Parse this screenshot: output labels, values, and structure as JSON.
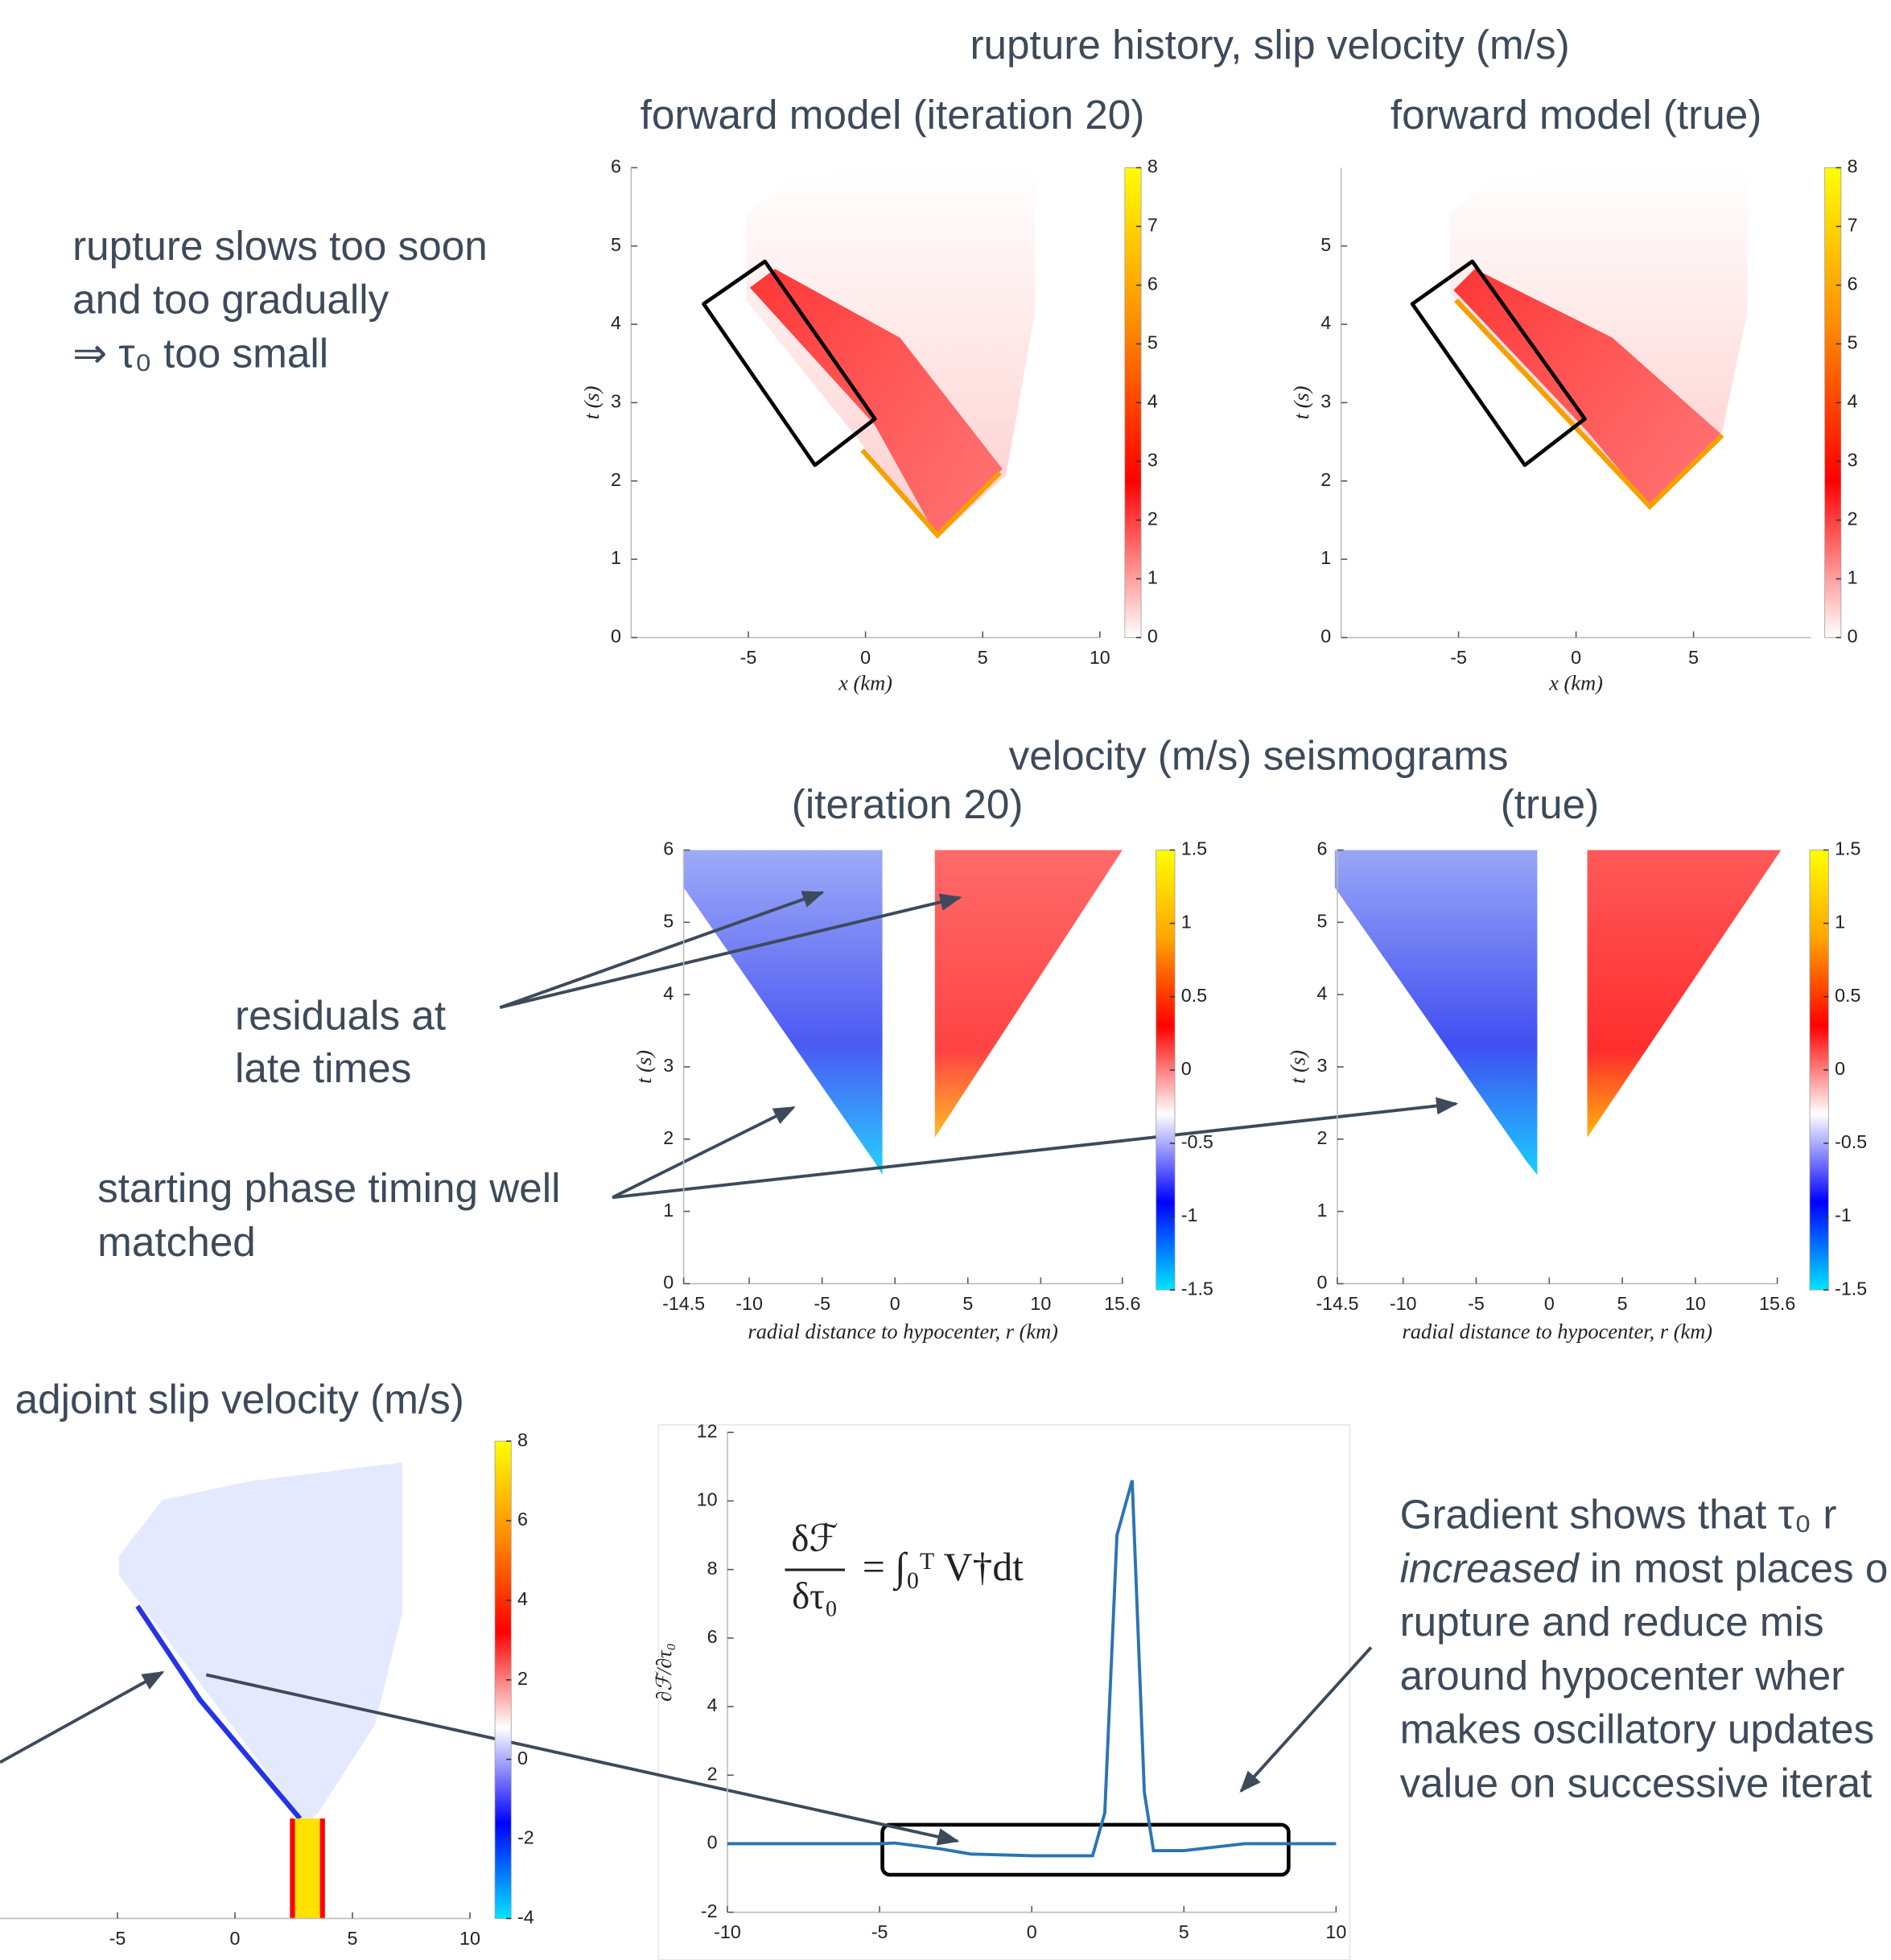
{
  "annotations": {
    "rupture_title": "rupture history, slip velocity (m/s)",
    "seismo_title": "velocity (m/s) seismograms",
    "adjoint_title": "adjoint slip velocity (m/s)",
    "note_rupture": [
      "rupture slows too soon",
      "and too gradually",
      "⇒ τ₀ too small"
    ],
    "note_residuals": [
      "residuals   at",
      "late times"
    ],
    "note_phase": [
      "starting phase timing well",
      "matched"
    ],
    "note_gradient": [
      "Gradient shows that τ₀ r",
      "increased",
      " in most places o",
      "rupture and reduce mis",
      "around hypocenter wher",
      "makes oscillatory updates",
      "value on successive iterat"
    ]
  },
  "chart_data": [
    {
      "type": "heatmap",
      "title": "forward model (iteration 20)",
      "xlabel": "x (km)",
      "ylabel": "t (s)",
      "xlim": [
        -10,
        10
      ],
      "xticks": [
        -5,
        0,
        5,
        10
      ],
      "ylim": [
        0,
        6
      ],
      "yticks": [
        0,
        1,
        2,
        3,
        4,
        5,
        6
      ],
      "colorbar": {
        "lim": [
          0,
          8
        ],
        "ticks": [
          0,
          1,
          2,
          3,
          4,
          5,
          6,
          7,
          8
        ],
        "colormap": [
          "#ffffff",
          "#ff0000",
          "#ff8c00",
          "#ffff00"
        ]
      }
    },
    {
      "type": "heatmap",
      "title": "forward model (true)",
      "xlabel": "x (km)",
      "ylabel": "t (s)",
      "xlim": [
        -10,
        10
      ],
      "xticks": [
        -5,
        0,
        5
      ],
      "ylim": [
        0,
        6
      ],
      "yticks": [
        0,
        1,
        2,
        3,
        4,
        5
      ],
      "colorbar": {
        "lim": [
          0,
          8
        ],
        "ticks": [
          0,
          1,
          2,
          3,
          4,
          5,
          6,
          7,
          8
        ],
        "colormap": [
          "#ffffff",
          "#ff0000",
          "#ff8c00",
          "#ffff00"
        ]
      }
    },
    {
      "type": "heatmap",
      "title": "(iteration 20)",
      "xlabel": "radial distance to hypocenter, r (km)",
      "ylabel": "t (s)",
      "xlim": [
        -14.5,
        15.6
      ],
      "xticks": [
        -14.5,
        -10,
        -5,
        0,
        5,
        10,
        15.6
      ],
      "ylim": [
        0,
        6
      ],
      "yticks": [
        0,
        1,
        2,
        3,
        4,
        5,
        6
      ],
      "colorbar": {
        "lim": [
          -1.5,
          1.5
        ],
        "ticks": [
          -1.5,
          -1,
          -0.5,
          0,
          0.5,
          1,
          1.5
        ],
        "colormap": [
          "#00e5ff",
          "#0000ff",
          "#ffffff",
          "#ff0000",
          "#ffa500",
          "#ffff00"
        ]
      }
    },
    {
      "type": "heatmap",
      "title": "(true)",
      "xlabel": "radial distance to hypocenter, r (km)",
      "ylabel": "t (s)",
      "xlim": [
        -14.5,
        15.6
      ],
      "xticks": [
        -14.5,
        -10,
        -5,
        0,
        5,
        10,
        15.6
      ],
      "ylim": [
        0,
        6
      ],
      "yticks": [
        0,
        1,
        2,
        3,
        4,
        5,
        6
      ],
      "colorbar": {
        "lim": [
          -1.5,
          1.5
        ],
        "ticks": [
          -1.5,
          -1,
          -0.5,
          0,
          0.5,
          1,
          1.5
        ],
        "colormap": [
          "#00e5ff",
          "#0000ff",
          "#ffffff",
          "#ff0000",
          "#ffa500",
          "#ffff00"
        ]
      }
    },
    {
      "type": "heatmap",
      "xlim": [
        -10,
        10
      ],
      "xticks": [
        -5,
        0,
        5,
        10
      ],
      "colorbar": {
        "lim": [
          -4,
          8
        ],
        "ticks": [
          -4,
          -2,
          0,
          2,
          4,
          6,
          8
        ],
        "colormap": [
          "#00e5ff",
          "#0000ff",
          "#ffffff",
          "#ff0000",
          "#ff8c00",
          "#ffff00"
        ]
      }
    },
    {
      "type": "line",
      "formula": {
        "numerator": "δℱ",
        "denominator": "δτ₀",
        "rhs": "= ∫₀ᵀ V†dt"
      },
      "ylabel": "∂ℱ/∂τ₀",
      "xlim": [
        -10,
        10
      ],
      "xticks": [
        -10,
        -5,
        0,
        5,
        10
      ],
      "ylim": [
        -2,
        12
      ],
      "yticks": [
        -2,
        0,
        2,
        4,
        6,
        8,
        10,
        12
      ],
      "series": [
        {
          "color": "#2a74b3",
          "x": [
            -10,
            -5,
            -4.5,
            -3,
            -2,
            0,
            2,
            2.4,
            2.8,
            3.3,
            3.7,
            4,
            5,
            6,
            7,
            10
          ],
          "values": [
            0,
            0,
            0.02,
            -0.15,
            -0.3,
            -0.35,
            -0.35,
            0.9,
            9,
            10.6,
            1.5,
            -0.2,
            -0.2,
            -0.1,
            0,
            0
          ]
        }
      ]
    }
  ]
}
